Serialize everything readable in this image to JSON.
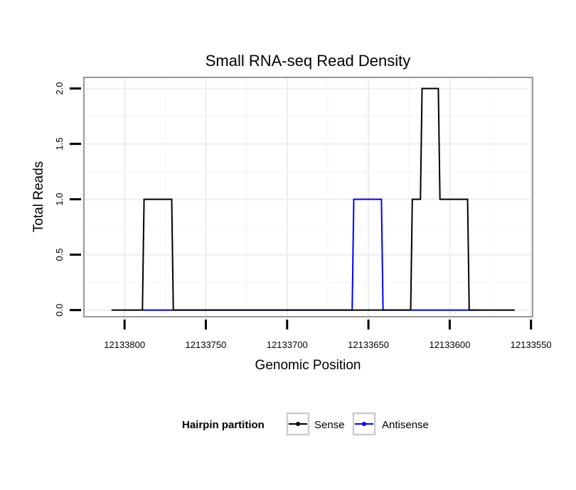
{
  "colors": {
    "sense": "#000000",
    "antisense": "#0000ff",
    "panel_border": "#7f7f7f",
    "grid_major": "#f0f0f0",
    "grid_minor": "#f7f7f7",
    "legend_key_border": "#cccccc"
  },
  "chart_data": {
    "type": "line",
    "title": "Small RNA-seq Read Density",
    "xlabel": "Genomic Position",
    "ylabel": "Total Reads",
    "x_reversed": true,
    "xlim": [
      12133825,
      12133549
    ],
    "ylim": [
      -0.06,
      2.1
    ],
    "xticks": [
      12133800,
      12133750,
      12133700,
      12133650,
      12133600,
      12133550
    ],
    "xtick_labels": [
      "12133800",
      "12133750",
      "12133700",
      "12133650",
      "12133600",
      "12133550"
    ],
    "yticks": [
      0.0,
      0.5,
      1.0,
      1.5,
      2.0
    ],
    "ytick_labels": [
      "0.0",
      "0.5",
      "1.0",
      "1.5",
      "2.0"
    ],
    "legend": {
      "title": "Hairpin partition",
      "position": "bottom",
      "entries": [
        "Sense",
        "Antisense"
      ]
    },
    "series": [
      {
        "name": "Sense",
        "color_key": "sense",
        "x": [
          12133808,
          12133789,
          12133788,
          12133771,
          12133770,
          12133624,
          12133623,
          12133618,
          12133617,
          12133607,
          12133606,
          12133589,
          12133588,
          12133582,
          12133581,
          12133560
        ],
        "y": [
          0,
          0,
          1,
          1,
          0,
          0,
          1,
          1,
          2,
          2,
          1,
          1,
          0,
          0,
          0,
          0
        ]
      },
      {
        "name": "Antisense",
        "color_key": "antisense",
        "x": [
          12133789,
          12133770,
          12133660,
          12133659,
          12133642,
          12133641,
          12133624,
          12133582
        ],
        "y": [
          0,
          0,
          0,
          1,
          1,
          0,
          0,
          0
        ]
      }
    ]
  }
}
